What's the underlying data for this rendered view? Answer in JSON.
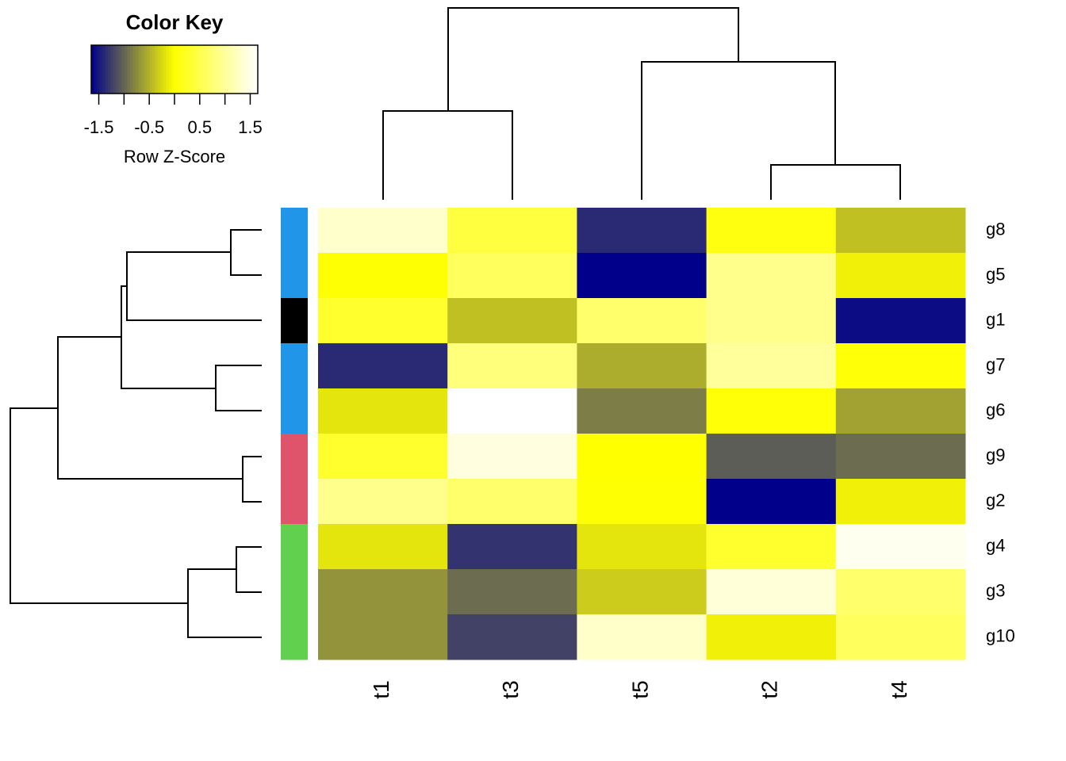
{
  "chart_data": {
    "type": "heatmap",
    "key_title": "Color Key",
    "key_label": "Row Z-Score",
    "zlim": [
      -1.65,
      1.65
    ],
    "key_ticks": [
      -1.5,
      -0.5,
      0.5,
      1.5
    ],
    "key_minor_ticks": [
      -1,
      0,
      1
    ],
    "colors": {
      "low": "#00008b",
      "mid": "#ffff00",
      "high": "#ffffff"
    },
    "columns": [
      "t1",
      "t3",
      "t5",
      "t2",
      "t4"
    ],
    "rows": [
      "g8",
      "g5",
      "g1",
      "g7",
      "g6",
      "g9",
      "g2",
      "g4",
      "g3",
      "g10"
    ],
    "row_side_colors": [
      "#2196e8",
      "#2196e8",
      "#000000",
      "#2196e8",
      "#2196e8",
      "#df536b",
      "#df536b",
      "#61d04f",
      "#61d04f",
      "#61d04f"
    ],
    "values": [
      [
        1.32,
        0.41,
        -1.38,
        0.1,
        -0.41
      ],
      [
        0.02,
        0.6,
        -1.65,
        0.9,
        -0.1
      ],
      [
        0.3,
        -0.41,
        0.7,
        0.9,
        -1.57
      ],
      [
        -1.38,
        0.8,
        -0.53,
        1.0,
        0.05
      ],
      [
        -0.17,
        1.65,
        -0.84,
        0.05,
        -0.6
      ],
      [
        0.3,
        1.45,
        0.0,
        -1.05,
        -0.95
      ],
      [
        0.9,
        0.7,
        0.02,
        -1.65,
        -0.1
      ],
      [
        -0.17,
        -1.32,
        -0.17,
        0.3,
        1.55
      ],
      [
        -0.7,
        -0.95,
        -0.33,
        1.4,
        0.7
      ],
      [
        -0.7,
        -1.22,
        1.3,
        -0.1,
        0.6
      ]
    ]
  }
}
